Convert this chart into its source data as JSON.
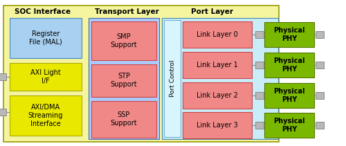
{
  "color_yellow_bg": "#f5f5a0",
  "color_transport_bg": "#aaccff",
  "color_port_bg": "#c8ecf8",
  "color_register": "#a8d0f0",
  "color_axi_light": "#e8e800",
  "color_axi_dma": "#e8e800",
  "color_smp": "#f08888",
  "color_stp": "#f08888",
  "color_ssp": "#f08888",
  "color_port_control": "#d8f4fc",
  "color_link": "#f08888",
  "color_phy": "#7ab800",
  "color_connector": "#b8b8b8",
  "title_soc": "SOC Interface",
  "title_transport": "Transport Layer",
  "title_port": "Port Layer",
  "label_register": "Register\nFile (MAL)",
  "label_axi_light": "AXI Light\nI/F",
  "label_axi_dma": "AXI/DMA\nStreaming\nInterface",
  "label_smp": "SMP\nSupport",
  "label_stp": "STP\nSupport",
  "label_ssp": "SSP\nSupport",
  "label_port_control": "Port Control",
  "label_link0": "Link Layer 0",
  "label_link1": "Link Layer 1",
  "label_link2": "Link Layer 2",
  "label_link3": "Link Layer 3",
  "label_phy": "Physical\nPHY",
  "text_color_phy": "#000000"
}
